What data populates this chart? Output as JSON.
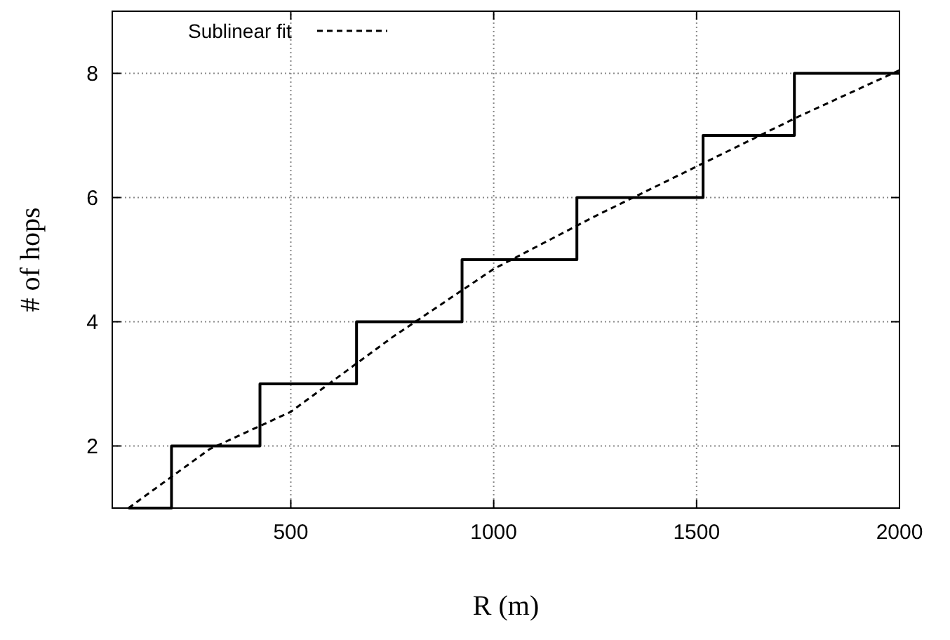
{
  "chart_data": {
    "type": "step",
    "xlabel": "R (m)",
    "ylabel": "# of hops",
    "xlim": [
      60,
      2000
    ],
    "ylim": [
      1,
      9
    ],
    "xticks": [
      500,
      1000,
      1500,
      2000
    ],
    "yticks": [
      2,
      4,
      6,
      8
    ],
    "grid": true,
    "legend": "top left",
    "series": [
      {
        "type": "step",
        "color": "#000000",
        "line_style": "solid",
        "x": [
          100,
          206,
          424,
          662,
          922,
          1205,
          1516,
          1741,
          2000
        ],
        "values": [
          1,
          2,
          3,
          4,
          5,
          6,
          7,
          8,
          8
        ]
      },
      {
        "type": "line",
        "name": "Sublinear fit",
        "color": "#000000",
        "line_style": "dashed",
        "x": [
          100,
          300,
          500,
          750,
          1000,
          1250,
          1500,
          1750,
          2000
        ],
        "values": [
          1,
          1.95,
          2.55,
          3.75,
          4.85,
          5.7,
          6.5,
          7.3,
          8.05
        ]
      }
    ]
  }
}
